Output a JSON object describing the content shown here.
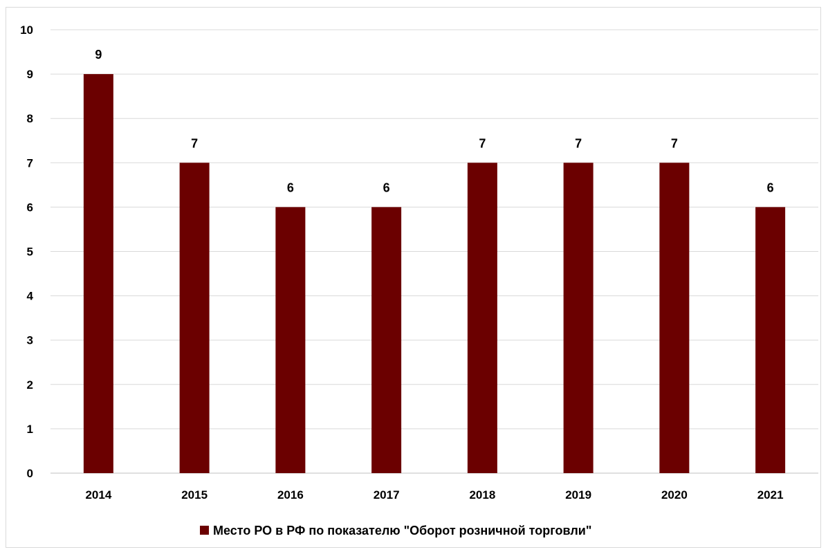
{
  "chart_data": {
    "type": "bar",
    "categories": [
      "2014",
      "2015",
      "2016",
      "2017",
      "2018",
      "2019",
      "2020",
      "2021"
    ],
    "series": [
      {
        "name": "Место РО в РФ по показателю \"Оборот розничной торговли\"",
        "values": [
          9,
          7,
          6,
          6,
          7,
          7,
          7,
          6
        ],
        "color": "#6b0000"
      }
    ],
    "data_labels": [
      "9",
      "7",
      "6",
      "6",
      "7",
      "7",
      "7",
      "6"
    ],
    "y_ticks": [
      "0",
      "1",
      "2",
      "3",
      "4",
      "5",
      "6",
      "7",
      "8",
      "9",
      "10"
    ],
    "ylim": [
      0,
      10
    ],
    "title": "",
    "xlabel": "",
    "ylabel": "",
    "grid": true,
    "legend_position": "bottom",
    "colors": {
      "bar": "#6b0000",
      "grid": "#d9d9d9",
      "axis": "#bfbfbf"
    }
  }
}
